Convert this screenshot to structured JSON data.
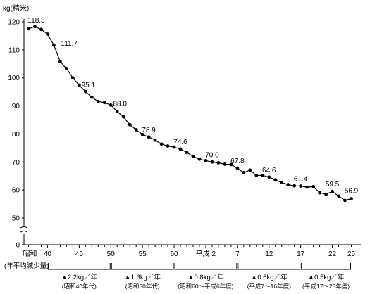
{
  "chart_data": {
    "type": "line",
    "ylabel": "kg(精米)",
    "ylim": [
      40,
      120
    ],
    "y_ticks": [
      0,
      50,
      60,
      70,
      80,
      90,
      100,
      110,
      120
    ],
    "axis_break": true,
    "grid": false,
    "x_tick_labels": [
      {
        "x": 1962,
        "text": "昭和"
      },
      {
        "x": 1965,
        "text": "40"
      },
      {
        "x": 1970,
        "text": "45"
      },
      {
        "x": 1975,
        "text": "50"
      },
      {
        "x": 1980,
        "text": "55"
      },
      {
        "x": 1985,
        "text": "60"
      },
      {
        "x": 1990,
        "text": "平成 2"
      },
      {
        "x": 1995,
        "text": "7"
      },
      {
        "x": 2000,
        "text": "12"
      },
      {
        "x": 2005,
        "text": "17"
      },
      {
        "x": 2010,
        "text": "22"
      },
      {
        "x": 2013,
        "text": "25"
      }
    ],
    "xlim": [
      1961.5,
      2013.5
    ],
    "series": [
      {
        "x": [
          1962,
          1963,
          1964,
          1965,
          1966,
          1967,
          1968,
          1969,
          1970,
          1971,
          1972,
          1973,
          1974,
          1975,
          1976,
          1977,
          1978,
          1979,
          1980,
          1981,
          1982,
          1983,
          1984,
          1985,
          1986,
          1987,
          1988,
          1989,
          1990,
          1991,
          1992,
          1993,
          1994,
          1995,
          1996,
          1997,
          1998,
          1999,
          2000,
          2001,
          2002,
          2003,
          2004,
          2005,
          2006,
          2007,
          2008,
          2009,
          2010,
          2011,
          2012,
          2013
        ],
        "values": [
          117.5,
          118.3,
          117.3,
          115.6,
          111.7,
          105.8,
          103.3,
          100.0,
          97.4,
          95.1,
          93.1,
          91.6,
          91.2,
          90.3,
          88.0,
          86.1,
          83.3,
          81.5,
          79.8,
          78.9,
          77.8,
          76.4,
          75.7,
          75.3,
          74.6,
          73.4,
          72.0,
          71.0,
          70.5,
          70.0,
          69.7,
          69.2,
          69.1,
          67.8,
          66.2,
          67.1,
          65.2,
          65.2,
          64.6,
          63.6,
          62.7,
          61.9,
          61.5,
          61.4,
          61.0,
          61.2,
          59.0,
          58.5,
          59.5,
          57.8,
          56.3,
          56.9
        ],
        "annotations": [
          {
            "x": 1963,
            "text": "118.3"
          },
          {
            "x": 1966,
            "text": "111.7"
          },
          {
            "x": 1971,
            "text": "95.1"
          },
          {
            "x": 1976,
            "text": "88.0"
          },
          {
            "x": 1981,
            "text": "78.9"
          },
          {
            "x": 1986,
            "text": "74.6"
          },
          {
            "x": 1991,
            "text": "70.0"
          },
          {
            "x": 1995,
            "text": "67.8"
          },
          {
            "x": 2000,
            "text": "64.6"
          },
          {
            "x": 2005,
            "text": "61.4"
          },
          {
            "x": 2010,
            "text": "59.5"
          },
          {
            "x": 2013,
            "text": "56.9"
          }
        ]
      }
    ],
    "decrease_label": "(年平均減少量)",
    "decreases": [
      {
        "from": 1965,
        "to": 1975,
        "amount": "▲2.2kg／年",
        "period": "(昭和40年代)"
      },
      {
        "from": 1975,
        "to": 1985,
        "amount": "▲1.3kg／年",
        "period": "(昭和50年代)"
      },
      {
        "from": 1985,
        "to": 1995,
        "amount": "▲0.8kg／年",
        "period": "(昭和60～平成6年度)"
      },
      {
        "from": 1995,
        "to": 2005,
        "amount": "▲0.6kg／年",
        "period": "(平成7～16年度)"
      },
      {
        "from": 2005,
        "to": 2013,
        "amount": "▲0.5kg／年",
        "period": "(平成17～25年度)"
      }
    ]
  }
}
